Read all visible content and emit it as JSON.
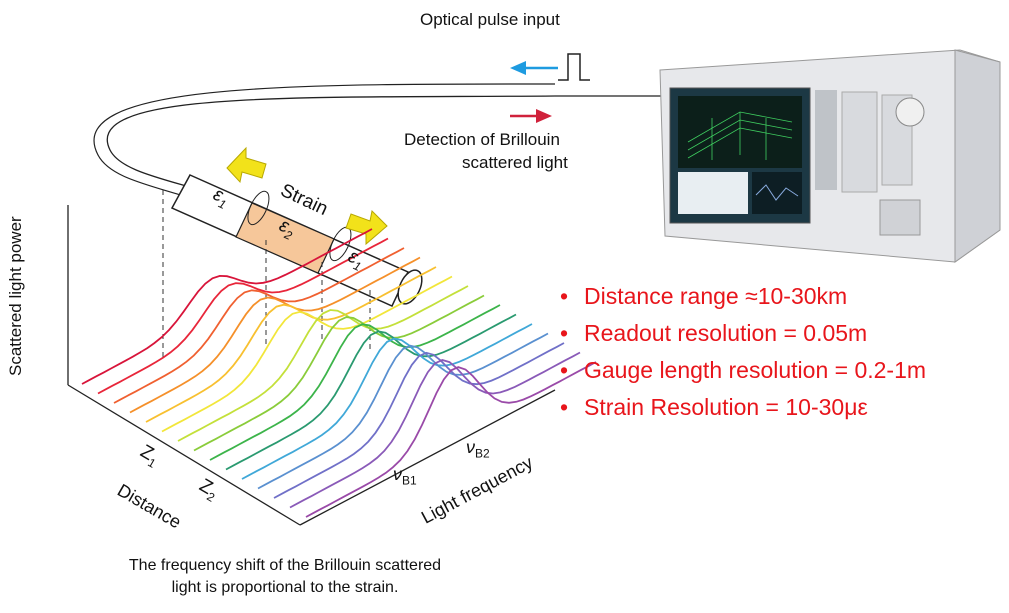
{
  "labels": {
    "optical_pulse_input": "Optical pulse input",
    "detection_line1": "Detection of Brillouin",
    "detection_line2": "scattered light",
    "strain": "Strain",
    "eps1_left": "ε",
    "eps1_left_sub": "1",
    "eps2": "ε",
    "eps2_sub": "2",
    "eps1_right": "ε",
    "eps1_right_sub": "1",
    "y_axis": "Scattered light power",
    "distance": "Distance",
    "z1": "Z",
    "z1_sub": "1",
    "z2": "Z",
    "z2_sub": "2",
    "light_frequency": "Light frequency",
    "nu_b1": "ν",
    "nu_b1_sub": "B1",
    "nu_b2": "ν",
    "nu_b2_sub": "B2"
  },
  "bullets": [
    "Distance range ≈10-30km",
    "Readout resolution = 0.05m",
    "Gauge length resolution = 0.2-1m",
    "Strain Resolution = 10-30με"
  ],
  "caption": {
    "line1": "The frequency shift of the Brillouin scattered",
    "line2": "light is proportional to the strain."
  },
  "colors": {
    "bullet_text": "#e8151b",
    "pulse_arrow": "#1e9be0",
    "detection_arrow": "#d0213b",
    "strain_arrow": "#f2e21a",
    "eps2_segment": "#f6c79a",
    "trace_colors": [
      "#d8143a",
      "#e8263a",
      "#f06030",
      "#f5902a",
      "#f8c030",
      "#f2e63a",
      "#c4e03a",
      "#8acc3a",
      "#3cb44a",
      "#2a9a70",
      "#40a8d8",
      "#5a90d0",
      "#7070c8",
      "#8a5ab8",
      "#9a4aa8"
    ]
  },
  "instrument": {
    "screen_color": "#1a5040",
    "icon": "optical-analyzer-instrument"
  }
}
